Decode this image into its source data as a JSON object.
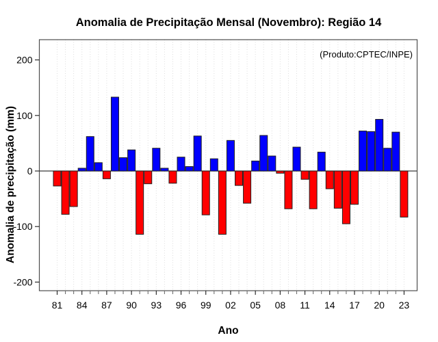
{
  "chart_data": {
    "type": "bar",
    "title": "Anomalia de Precipitação Mensal (Novembro): Região 14",
    "xlabel": "Ano",
    "ylabel": "Anomalia de precipitação (mm)",
    "annotation": "(Produto:CPTEC/INPE)",
    "x": [
      1981,
      1982,
      1983,
      1984,
      1985,
      1986,
      1987,
      1988,
      1989,
      1990,
      1991,
      1992,
      1993,
      1994,
      1995,
      1996,
      1997,
      1998,
      1999,
      2000,
      2001,
      2002,
      2003,
      2004,
      2005,
      2006,
      2007,
      2008,
      2009,
      2010,
      2011,
      2012,
      2013,
      2014,
      2015,
      2016,
      2017,
      2018,
      2019,
      2020,
      2021,
      2022,
      2023
    ],
    "values": [
      -27,
      -78,
      -64,
      5,
      62,
      15,
      -14,
      133,
      24,
      38,
      -114,
      -23,
      41,
      5,
      -22,
      25,
      8,
      63,
      -79,
      22,
      -114,
      55,
      -26,
      -58,
      18,
      64,
      27,
      -4,
      -68,
      43,
      -15,
      -68,
      34,
      -32,
      -67,
      -95,
      -60,
      72,
      71,
      93,
      41,
      70,
      -83
    ],
    "series_units": "mm",
    "x_major_tick_years": [
      1981,
      1984,
      1987,
      1990,
      1993,
      1996,
      1999,
      2002,
      2005,
      2008,
      2011,
      2014,
      2017,
      2020,
      2023
    ],
    "x_major_tick_labels": [
      "81",
      "84",
      "87",
      "90",
      "93",
      "96",
      "99",
      "02",
      "05",
      "08",
      "11",
      "14",
      "17",
      "20",
      "23"
    ],
    "y_ticks": [
      200,
      100,
      0,
      -100,
      -200
    ],
    "ylim": [
      -215,
      237
    ],
    "grid": "vertical-dotted-per-year",
    "legend": "none",
    "colors": {
      "positive_bar": "#0000FF",
      "negative_bar": "#FF0000",
      "bar_border": "#1F1F1F",
      "gridline": "#DCDCDC",
      "frame": "#4D4D4D",
      "zero_line": "#3A3A3A",
      "tick_major": "#1A1A1A",
      "tick_minor": "#6E6E6E",
      "annotation_text": "#808080"
    }
  }
}
